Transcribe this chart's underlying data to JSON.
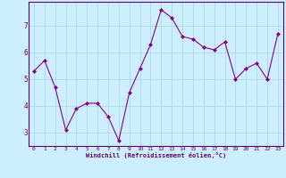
{
  "x": [
    0,
    1,
    2,
    3,
    4,
    5,
    6,
    7,
    8,
    9,
    10,
    11,
    12,
    13,
    14,
    15,
    16,
    17,
    18,
    19,
    20,
    21,
    22,
    23
  ],
  "y": [
    5.3,
    5.7,
    4.7,
    3.1,
    3.9,
    4.1,
    4.1,
    3.6,
    2.7,
    4.5,
    5.4,
    6.3,
    7.6,
    7.3,
    6.6,
    6.5,
    6.2,
    6.1,
    6.4,
    5.0,
    5.4,
    5.6,
    5.0,
    6.7
  ],
  "line_color": "#880088",
  "marker": "D",
  "marker_size": 2.0,
  "bg_color": "#cceeff",
  "grid_color": "#aadddd",
  "xlabel": "Windchill (Refroidissement éolien,°C)",
  "xlabel_color": "#660066",
  "tick_color": "#660066",
  "axes_color": "#660066",
  "ylim": [
    2.5,
    7.9
  ],
  "xlim": [
    -0.5,
    23.5
  ],
  "yticks": [
    3,
    4,
    5,
    6,
    7
  ],
  "xticks": [
    0,
    1,
    2,
    3,
    4,
    5,
    6,
    7,
    8,
    9,
    10,
    11,
    12,
    13,
    14,
    15,
    16,
    17,
    18,
    19,
    20,
    21,
    22,
    23
  ]
}
